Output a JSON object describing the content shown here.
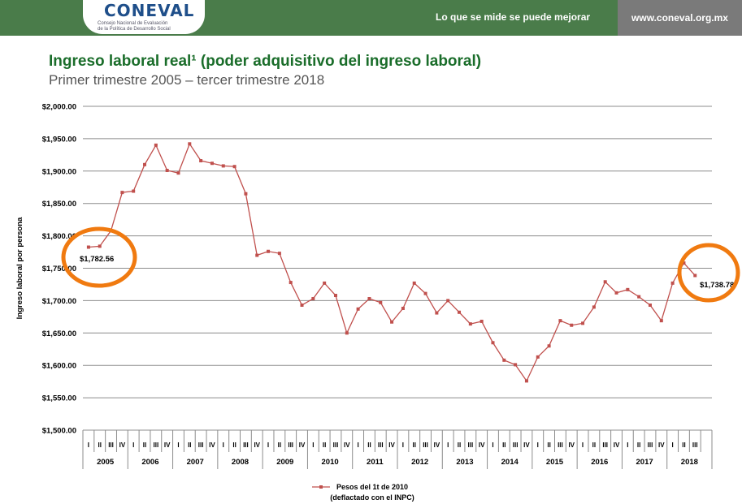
{
  "header": {
    "logo_text": "CONEVAL",
    "logo_subtitle_1": "Consejo Nacional de Evaluación",
    "logo_subtitle_2": "de la Política de Desarrollo Social",
    "slogan": "Lo que se mide se puede mejorar",
    "url": "www.coneval.org.mx",
    "colors": {
      "bar": "#4a7c4a",
      "url_bg": "#7a7a7a",
      "title": "#1a6d2a",
      "series": "#c0504d",
      "circle": "#f07a10"
    }
  },
  "slide": {
    "title": "Ingreso laboral real¹ (poder adquisitivo del ingreso laboral)",
    "subtitle": "Primer trimestre 2005 – tercer trimestre 2018"
  },
  "chart_data": {
    "type": "line",
    "title": "",
    "ylabel": "Ingreso laboral por persona",
    "xlabel": "",
    "ylim": [
      1500,
      2000
    ],
    "ytick_labels": [
      "$1,500.00",
      "$1,550.00",
      "$1,600.00",
      "$1,650.00",
      "$1,700.00",
      "$1,750.00",
      "$1,800.00",
      "$1,850.00",
      "$1,900.00",
      "$1,950.00",
      "$2,000.00"
    ],
    "grid": true,
    "legend_position": "bottom",
    "quarter_labels": [
      "I",
      "II",
      "III",
      "IV"
    ],
    "years": [
      "2005",
      "2006",
      "2007",
      "2008",
      "2009",
      "2010",
      "2011",
      "2012",
      "2013",
      "2014",
      "2015",
      "2016",
      "2017",
      "2018"
    ],
    "series": [
      {
        "name": "Pesos del 1t de 2010",
        "name_line2": "(deflactado con el INPC)",
        "values": [
          1782.56,
          1784,
          1808,
          1867,
          1869,
          1910,
          1940,
          1901,
          1897,
          1942,
          1916,
          1912,
          1908,
          1907,
          1865,
          1770,
          1776,
          1773,
          1728,
          1693,
          1703,
          1727,
          1708,
          1650,
          1687,
          1703,
          1697,
          1667,
          1688,
          1727,
          1711,
          1681,
          1700,
          1682,
          1664,
          1668,
          1635,
          1608,
          1601,
          1576,
          1613,
          1630,
          1669,
          1662,
          1665,
          1690,
          1729,
          1712,
          1717,
          1706,
          1693,
          1669,
          1727,
          1758,
          1738.78
        ]
      }
    ],
    "annotations": [
      {
        "text": "$1,782.56",
        "point_index": 0
      },
      {
        "text": "$1,738.78",
        "point_index": 54
      }
    ]
  }
}
